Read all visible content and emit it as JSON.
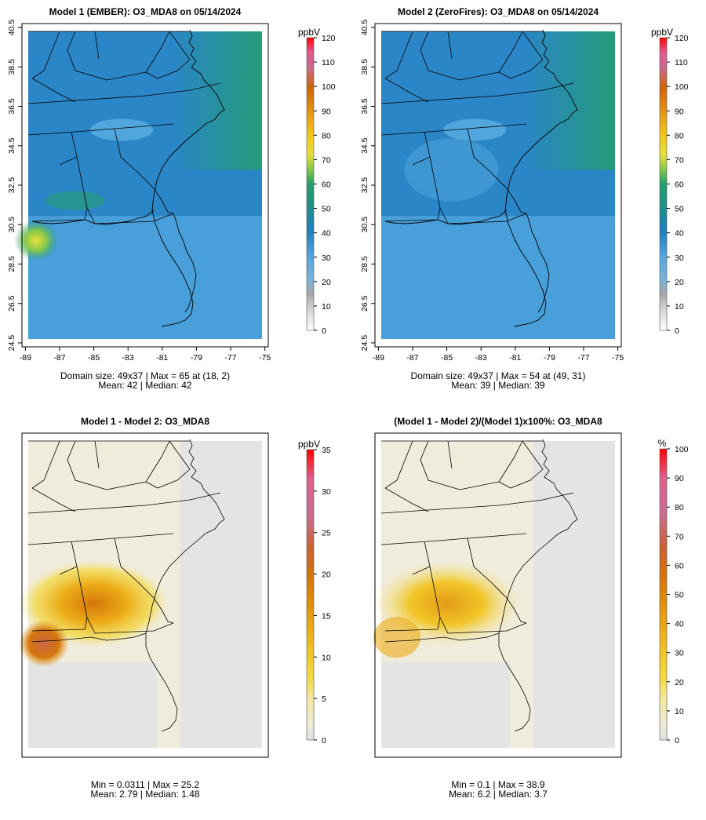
{
  "chart_data": [
    {
      "type": "heatmap",
      "id": "model1",
      "title": "Model 1 (EMBER): O3_MDA8 on 05/14/2024",
      "variable": "O3_MDA8",
      "unit": "ppbV",
      "x_ticks": [
        "-89",
        "-87",
        "-85",
        "-83",
        "-81",
        "-79",
        "-77",
        "-75"
      ],
      "y_ticks": [
        "24.5",
        "26.5",
        "28.5",
        "30.5",
        "32.5",
        "34.5",
        "36.5",
        "38.5",
        "40.5"
      ],
      "xlim": [
        -89.2,
        -74.8
      ],
      "ylim": [
        24.3,
        40.7
      ],
      "colorbar_ticks": [
        "0",
        "10",
        "20",
        "30",
        "40",
        "50",
        "60",
        "70",
        "80",
        "90",
        "100",
        "110",
        "120"
      ],
      "colorbar_range": [
        0,
        120
      ],
      "stats_line1": "Domain size: 49x37 | Max = 65 at (18, 2)",
      "stats_line2": "Mean: 42 |  Median: 42",
      "domain_size": "49x37",
      "max": 65,
      "max_at": [
        18,
        2
      ],
      "mean": 42,
      "median": 42
    },
    {
      "type": "heatmap",
      "id": "model2",
      "title": "Model 2 (ZeroFires): O3_MDA8 on 05/14/2024",
      "variable": "O3_MDA8",
      "unit": "ppbV",
      "x_ticks": [
        "-89",
        "-87",
        "-85",
        "-83",
        "-81",
        "-79",
        "-77",
        "-75"
      ],
      "y_ticks": [
        "24.5",
        "26.5",
        "28.5",
        "30.5",
        "32.5",
        "34.5",
        "36.5",
        "38.5",
        "40.5"
      ],
      "xlim": [
        -89.2,
        -74.8
      ],
      "ylim": [
        24.3,
        40.7
      ],
      "colorbar_ticks": [
        "0",
        "10",
        "20",
        "30",
        "40",
        "50",
        "60",
        "70",
        "80",
        "90",
        "100",
        "110",
        "120"
      ],
      "colorbar_range": [
        0,
        120
      ],
      "stats_line1": "Domain size: 49x37 | Max = 54 at (49, 31)",
      "stats_line2": "Mean: 39 |  Median: 39",
      "domain_size": "49x37",
      "max": 54,
      "max_at": [
        49,
        31
      ],
      "mean": 39,
      "median": 39
    },
    {
      "type": "heatmap",
      "id": "diff",
      "title": "Model 1 - Model 2: O3_MDA8",
      "variable": "O3_MDA8",
      "unit": "ppbV",
      "colorbar_ticks": [
        "0",
        "5",
        "10",
        "15",
        "20",
        "25",
        "30",
        "35"
      ],
      "colorbar_range": [
        0,
        35
      ],
      "stats_line1": "Min = 0.0311 | Max = 25.2",
      "stats_line2": "Mean: 2.79 |  Median: 1.48",
      "min": 0.0311,
      "max": 25.2,
      "mean": 2.79,
      "median": 1.48
    },
    {
      "type": "heatmap",
      "id": "pctdiff",
      "title": "(Model 1 - Model 2)/(Model 1)x100%: O3_MDA8",
      "variable": "O3_MDA8",
      "unit": "%",
      "colorbar_ticks": [
        "0",
        "10",
        "20",
        "30",
        "40",
        "50",
        "60",
        "70",
        "80",
        "90",
        "100"
      ],
      "colorbar_range": [
        0,
        100
      ],
      "stats_line1": "Min = 0.1 | Max = 38.9",
      "stats_line2": "Mean: 6.2 |  Median: 3.7",
      "min": 0.1,
      "max": 38.9,
      "mean": 6.2,
      "median": 3.7
    }
  ]
}
